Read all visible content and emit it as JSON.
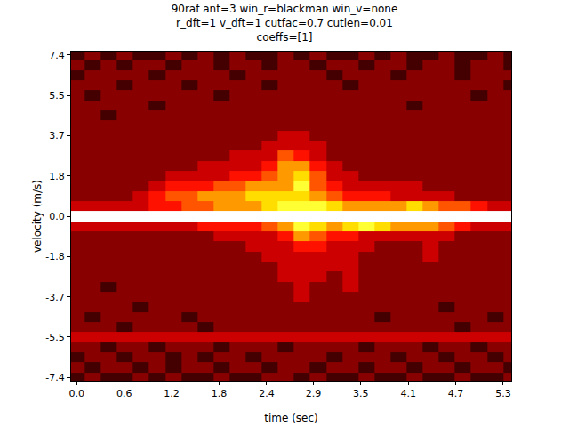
{
  "chart_data": {
    "type": "heatmap",
    "title": "90raf ant=3 win_r=blackman win_v=none\nr_dft=1 v_dft=1 cutfac=0.7 cutlen=0.01\ncoeffs=[1]",
    "x_label": "time (sec)",
    "y_label": "velocity (m/s)",
    "x": [
      0,
      0.2,
      0.4,
      0.6,
      0.8,
      1.0,
      1.2,
      1.4,
      1.6,
      1.8,
      2.0,
      2.2,
      2.4,
      2.6,
      2.8,
      3.0,
      3.2,
      3.4,
      3.6,
      3.8,
      4.0,
      4.2,
      4.4,
      4.6,
      4.8,
      5.0,
      5.2,
      5.4
    ],
    "y": [
      -7.4,
      -6.94,
      -6.48,
      -6.01,
      -5.55,
      -5.09,
      -4.63,
      -4.16,
      -3.7,
      -3.24,
      -2.78,
      -2.31,
      -1.85,
      -1.39,
      -0.93,
      -0.46,
      0,
      0.46,
      0.93,
      1.39,
      1.85,
      2.31,
      2.78,
      3.24,
      3.7,
      4.16,
      4.63,
      5.09,
      5.55,
      6.01,
      6.48,
      6.94,
      7.4
    ],
    "z": [
      [
        1,
        2,
        1,
        1,
        2,
        1,
        2,
        1,
        1,
        2,
        1,
        1,
        2,
        2,
        1,
        2,
        1,
        1,
        2,
        1,
        1,
        2,
        1,
        1,
        2,
        1,
        1,
        2
      ],
      [
        2,
        1,
        2,
        2,
        1,
        2,
        1,
        2,
        2,
        1,
        2,
        2,
        1,
        2,
        2,
        1,
        2,
        2,
        1,
        2,
        2,
        1,
        2,
        2,
        1,
        2,
        2,
        1
      ],
      [
        1,
        2,
        2,
        1,
        2,
        2,
        1,
        2,
        1,
        2,
        2,
        1,
        2,
        2,
        2,
        2,
        1,
        2,
        2,
        2,
        1,
        2,
        2,
        1,
        2,
        2,
        1,
        2
      ],
      [
        2,
        2,
        1,
        2,
        2,
        1,
        2,
        2,
        2,
        1,
        2,
        2,
        2,
        1,
        2,
        2,
        2,
        2,
        1,
        2,
        2,
        2,
        1,
        2,
        2,
        1,
        2,
        2
      ],
      [
        3,
        3,
        3,
        3,
        3,
        3,
        3,
        3,
        3,
        3,
        3,
        3,
        3,
        3,
        3,
        3,
        3,
        3,
        3,
        3,
        3,
        3,
        3,
        3,
        3,
        3,
        3,
        3
      ],
      [
        2,
        2,
        2,
        1,
        2,
        2,
        2,
        2,
        1,
        2,
        2,
        2,
        2,
        2,
        2,
        2,
        2,
        2,
        2,
        2,
        2,
        2,
        2,
        2,
        1,
        2,
        2,
        2
      ],
      [
        2,
        1,
        2,
        2,
        2,
        2,
        2,
        1,
        2,
        2,
        2,
        2,
        2,
        2,
        2,
        2,
        2,
        2,
        2,
        1,
        2,
        2,
        2,
        2,
        2,
        2,
        1,
        2
      ],
      [
        2,
        2,
        2,
        2,
        1,
        2,
        2,
        2,
        2,
        2,
        2,
        2,
        2,
        2,
        2,
        2,
        2,
        2,
        2,
        2,
        2,
        2,
        2,
        1,
        2,
        2,
        2,
        2
      ],
      [
        2,
        2,
        2,
        2,
        2,
        2,
        2,
        2,
        2,
        2,
        2,
        2,
        2,
        2,
        3,
        2,
        2,
        2,
        2,
        2,
        2,
        2,
        2,
        2,
        2,
        2,
        2,
        2
      ],
      [
        2,
        2,
        1,
        2,
        2,
        2,
        2,
        2,
        2,
        2,
        2,
        2,
        2,
        2,
        3,
        2,
        2,
        3,
        2,
        2,
        2,
        2,
        2,
        2,
        2,
        2,
        2,
        2
      ],
      [
        2,
        2,
        2,
        2,
        2,
        2,
        2,
        2,
        2,
        2,
        2,
        2,
        2,
        3,
        3,
        3,
        2,
        3,
        2,
        2,
        2,
        2,
        2,
        2,
        2,
        2,
        2,
        2
      ],
      [
        2,
        2,
        2,
        2,
        2,
        2,
        2,
        2,
        2,
        2,
        2,
        2,
        2,
        3,
        3,
        3,
        3,
        3,
        2,
        2,
        2,
        2,
        2,
        2,
        2,
        2,
        2,
        2
      ],
      [
        2,
        2,
        2,
        2,
        2,
        2,
        2,
        2,
        2,
        2,
        2,
        2,
        3,
        3,
        3,
        3,
        3,
        3,
        2,
        2,
        2,
        2,
        3,
        2,
        2,
        2,
        2,
        2
      ],
      [
        2,
        2,
        2,
        2,
        2,
        2,
        2,
        2,
        2,
        2,
        2,
        3,
        3,
        3,
        4,
        4,
        3,
        3,
        3,
        2,
        2,
        2,
        3,
        2,
        2,
        2,
        2,
        2
      ],
      [
        2,
        2,
        2,
        2,
        2,
        2,
        2,
        2,
        2,
        3,
        3,
        3,
        3,
        4,
        6,
        5,
        4,
        4,
        3,
        3,
        3,
        3,
        3,
        3,
        2,
        2,
        2,
        2
      ],
      [
        3,
        3,
        3,
        3,
        3,
        3,
        3,
        3,
        4,
        4,
        4,
        4,
        5,
        6,
        8,
        7,
        6,
        7,
        8,
        7,
        6,
        6,
        6,
        5,
        4,
        3,
        3,
        3
      ],
      [
        10,
        10,
        10,
        10,
        10,
        10,
        10,
        10,
        10,
        10,
        10,
        10,
        10,
        10,
        10,
        10,
        10,
        10,
        10,
        10,
        10,
        10,
        10,
        10,
        10,
        10,
        10,
        10
      ],
      [
        3,
        3,
        3,
        3,
        3,
        4,
        4,
        5,
        5,
        6,
        6,
        6,
        7,
        8,
        8,
        8,
        7,
        6,
        6,
        6,
        6,
        7,
        6,
        5,
        5,
        4,
        3,
        3
      ],
      [
        2,
        2,
        2,
        2,
        3,
        4,
        5,
        5,
        6,
        6,
        6,
        7,
        7,
        7,
        7,
        6,
        5,
        4,
        4,
        4,
        3,
        3,
        3,
        3,
        2,
        2,
        2,
        2
      ],
      [
        2,
        2,
        2,
        2,
        2,
        3,
        4,
        4,
        4,
        5,
        5,
        6,
        6,
        6,
        8,
        5,
        4,
        3,
        3,
        3,
        3,
        3,
        2,
        2,
        2,
        2,
        2,
        2
      ],
      [
        2,
        2,
        2,
        2,
        2,
        2,
        3,
        3,
        3,
        3,
        4,
        4,
        5,
        6,
        7,
        5,
        3,
        3,
        2,
        2,
        2,
        2,
        2,
        2,
        2,
        2,
        2,
        2
      ],
      [
        2,
        2,
        2,
        2,
        2,
        2,
        2,
        2,
        3,
        3,
        3,
        3,
        4,
        6,
        6,
        4,
        3,
        2,
        2,
        2,
        2,
        2,
        2,
        2,
        2,
        2,
        2,
        2
      ],
      [
        2,
        2,
        2,
        2,
        2,
        2,
        2,
        2,
        2,
        2,
        3,
        3,
        3,
        5,
        4,
        3,
        2,
        2,
        2,
        2,
        2,
        2,
        2,
        2,
        2,
        2,
        2,
        2
      ],
      [
        2,
        2,
        2,
        2,
        2,
        2,
        2,
        2,
        2,
        2,
        2,
        2,
        3,
        3,
        3,
        3,
        2,
        2,
        2,
        2,
        2,
        2,
        2,
        2,
        2,
        2,
        2,
        2
      ],
      [
        2,
        2,
        2,
        2,
        2,
        2,
        2,
        2,
        2,
        2,
        2,
        2,
        2,
        3,
        3,
        2,
        2,
        2,
        2,
        2,
        2,
        2,
        2,
        2,
        2,
        2,
        2,
        2
      ],
      [
        2,
        2,
        2,
        2,
        2,
        2,
        2,
        2,
        2,
        2,
        2,
        2,
        2,
        2,
        2,
        2,
        2,
        2,
        2,
        2,
        2,
        2,
        2,
        2,
        2,
        2,
        2,
        2
      ],
      [
        2,
        2,
        1,
        2,
        2,
        2,
        2,
        2,
        2,
        2,
        2,
        2,
        2,
        2,
        2,
        2,
        2,
        2,
        2,
        2,
        2,
        2,
        2,
        2,
        2,
        2,
        2,
        2
      ],
      [
        2,
        2,
        2,
        2,
        2,
        1,
        2,
        2,
        2,
        2,
        2,
        2,
        2,
        2,
        2,
        2,
        2,
        2,
        2,
        2,
        2,
        1,
        2,
        2,
        2,
        2,
        2,
        2
      ],
      [
        2,
        1,
        2,
        2,
        2,
        2,
        2,
        2,
        2,
        1,
        2,
        2,
        2,
        2,
        2,
        2,
        2,
        2,
        2,
        2,
        2,
        2,
        2,
        2,
        2,
        1,
        2,
        2
      ],
      [
        2,
        2,
        2,
        1,
        2,
        2,
        2,
        1,
        2,
        2,
        2,
        2,
        1,
        2,
        2,
        2,
        2,
        1,
        2,
        2,
        2,
        2,
        2,
        2,
        2,
        2,
        2,
        1
      ],
      [
        1,
        2,
        2,
        2,
        2,
        1,
        2,
        2,
        2,
        2,
        1,
        2,
        2,
        2,
        2,
        2,
        1,
        2,
        2,
        2,
        1,
        2,
        2,
        2,
        1,
        2,
        2,
        2
      ],
      [
        2,
        1,
        2,
        1,
        2,
        2,
        1,
        2,
        2,
        1,
        2,
        2,
        1,
        2,
        2,
        1,
        2,
        2,
        1,
        2,
        2,
        1,
        2,
        2,
        1,
        2,
        2,
        1
      ],
      [
        1,
        2,
        1,
        2,
        1,
        1,
        2,
        1,
        2,
        1,
        2,
        1,
        1,
        2,
        1,
        2,
        1,
        1,
        2,
        1,
        2,
        1,
        1,
        2,
        1,
        1,
        2,
        1
      ]
    ],
    "zlim": [
      0,
      10
    ],
    "xlim": [
      -0.07,
      5.4
    ],
    "ylim": [
      -7.55,
      7.55
    ],
    "xticks": [
      {
        "value": 0,
        "label": "0.0"
      },
      {
        "value": 0.59,
        "label": "0.6"
      },
      {
        "value": 1.18,
        "label": "1.2"
      },
      {
        "value": 1.77,
        "label": "1.8"
      },
      {
        "value": 2.36,
        "label": "2.4"
      },
      {
        "value": 2.94,
        "label": "2.9"
      },
      {
        "value": 3.53,
        "label": "3.5"
      },
      {
        "value": 4.12,
        "label": "4.1"
      },
      {
        "value": 4.71,
        "label": "4.7"
      },
      5.3
    ],
    "yticks": [
      -7.4,
      {
        "value": -5.54,
        "label": "-5.5"
      },
      -3.7,
      {
        "value": -1.84,
        "label": "-1.8"
      },
      {
        "value": 0,
        "label": "0.0"
      },
      {
        "value": 1.84,
        "label": "1.8"
      },
      3.7,
      {
        "value": 5.54,
        "label": "5.5"
      },
      7.4
    ],
    "grid": false
  }
}
